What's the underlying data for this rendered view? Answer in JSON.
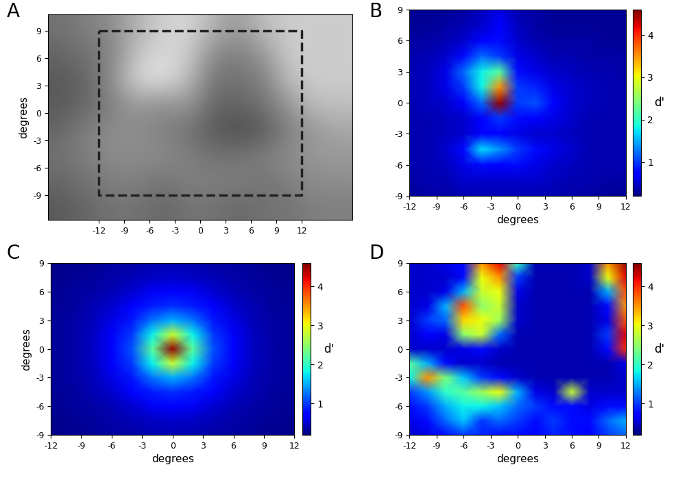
{
  "chart_data": [
    {
      "type": "image",
      "title": "A",
      "ylabel": "degrees",
      "color": "gray",
      "xlim": [
        -18,
        18
      ],
      "ylim": [
        -11.7,
        10.8
      ],
      "xticks": [
        -12,
        -9,
        -6,
        -3,
        0,
        3,
        6,
        9,
        12
      ],
      "yticks": [
        -9,
        -6,
        -3,
        0,
        3,
        6,
        9
      ],
      "clim": [
        0,
        1
      ],
      "cells": [
        [
          0.45,
          0.5,
          0.55,
          0.7,
          0.8,
          0.85,
          0.7,
          0.6,
          0.75,
          0.8,
          0.8,
          0.8
        ],
        [
          0.4,
          0.45,
          0.5,
          0.75,
          0.85,
          0.8,
          0.55,
          0.5,
          0.6,
          0.8,
          0.8,
          0.8
        ],
        [
          0.35,
          0.4,
          0.55,
          0.85,
          0.9,
          0.75,
          0.45,
          0.45,
          0.5,
          0.75,
          0.8,
          0.8
        ],
        [
          0.35,
          0.4,
          0.5,
          0.6,
          0.55,
          0.6,
          0.4,
          0.4,
          0.45,
          0.6,
          0.75,
          0.75
        ],
        [
          0.4,
          0.5,
          0.55,
          0.55,
          0.5,
          0.45,
          0.35,
          0.3,
          0.35,
          0.5,
          0.6,
          0.65
        ],
        [
          0.45,
          0.5,
          0.55,
          0.55,
          0.55,
          0.5,
          0.45,
          0.45,
          0.5,
          0.55,
          0.6,
          0.6
        ],
        [
          0.4,
          0.45,
          0.5,
          0.5,
          0.45,
          0.5,
          0.5,
          0.5,
          0.45,
          0.5,
          0.55,
          0.55
        ],
        [
          0.35,
          0.4,
          0.45,
          0.45,
          0.4,
          0.45,
          0.45,
          0.4,
          0.45,
          0.45,
          0.5,
          0.5
        ]
      ],
      "region": {
        "x": [
          -12,
          12
        ],
        "y": [
          -9,
          9
        ],
        "line_style": "dashed"
      }
    },
    {
      "type": "heatmap",
      "title": "B",
      "xlabel": "degrees",
      "color": "jet",
      "xlim": [
        -12,
        12
      ],
      "ylim": [
        -9,
        9
      ],
      "xticks": [
        -12,
        -9,
        -6,
        -3,
        0,
        3,
        6,
        9,
        12
      ],
      "yticks": [
        -9,
        -6,
        -3,
        0,
        3,
        6,
        9
      ],
      "x": [
        -12,
        -10,
        -8,
        -6,
        -4,
        -2,
        0,
        2,
        4,
        6,
        8,
        10,
        12
      ],
      "y": [
        9,
        7.5,
        6,
        4.5,
        3,
        1.5,
        0,
        -1.5,
        -3,
        -4.5,
        -6,
        -7.5,
        -9
      ],
      "cells": [
        [
          0.3,
          0.3,
          0.3,
          0.35,
          0.45,
          0.6,
          0.4,
          0.35,
          0.3,
          0.3,
          0.3,
          0.3,
          0.3
        ],
        [
          0.3,
          0.3,
          0.35,
          0.4,
          0.5,
          0.7,
          0.45,
          0.35,
          0.3,
          0.3,
          0.3,
          0.3,
          0.3
        ],
        [
          0.35,
          0.35,
          0.4,
          0.5,
          0.7,
          0.8,
          0.5,
          0.4,
          0.35,
          0.35,
          0.35,
          0.3,
          0.3
        ],
        [
          0.4,
          0.4,
          0.5,
          0.8,
          1.2,
          1.0,
          0.6,
          0.5,
          0.4,
          0.4,
          0.35,
          0.35,
          0.35
        ],
        [
          0.4,
          0.45,
          0.6,
          1.2,
          1.8,
          2.2,
          0.8,
          0.6,
          0.5,
          0.45,
          0.4,
          0.4,
          0.35
        ],
        [
          0.4,
          0.45,
          0.6,
          1.0,
          1.8,
          3.5,
          1.0,
          0.9,
          0.6,
          0.5,
          0.45,
          0.4,
          0.4
        ],
        [
          0.4,
          0.45,
          0.5,
          0.7,
          1.2,
          4.5,
          1.0,
          1.1,
          0.7,
          0.5,
          0.45,
          0.4,
          0.4
        ],
        [
          0.4,
          0.4,
          0.45,
          0.5,
          0.7,
          1.0,
          0.8,
          0.7,
          0.6,
          0.5,
          0.4,
          0.4,
          0.4
        ],
        [
          0.4,
          0.4,
          0.45,
          0.5,
          0.7,
          0.7,
          0.6,
          0.5,
          0.5,
          0.45,
          0.4,
          0.4,
          0.4
        ],
        [
          0.4,
          0.4,
          0.5,
          0.8,
          1.7,
          1.4,
          1.0,
          0.8,
          0.6,
          0.5,
          0.4,
          0.4,
          0.4
        ],
        [
          0.4,
          0.4,
          0.45,
          0.6,
          0.8,
          0.7,
          0.8,
          0.6,
          0.5,
          0.45,
          0.4,
          0.4,
          0.4
        ],
        [
          0.35,
          0.4,
          0.4,
          0.5,
          0.5,
          0.5,
          0.5,
          0.5,
          0.45,
          0.4,
          0.4,
          0.35,
          0.35
        ],
        [
          0.3,
          0.35,
          0.35,
          0.4,
          0.4,
          0.4,
          0.4,
          0.4,
          0.4,
          0.35,
          0.35,
          0.3,
          0.3
        ]
      ],
      "colorbar": {
        "label": "d'",
        "range": [
          0.2,
          4.6
        ],
        "ticks": [
          1,
          2,
          3,
          4
        ]
      }
    },
    {
      "type": "heatmap",
      "title": "C",
      "xlabel": "degrees",
      "ylabel": "degrees",
      "color": "jet",
      "xlim": [
        -12,
        12
      ],
      "ylim": [
        -9,
        9
      ],
      "xticks": [
        -12,
        -9,
        -6,
        -3,
        0,
        3,
        6,
        9,
        12
      ],
      "yticks": [
        -9,
        -6,
        -3,
        0,
        3,
        6,
        9
      ],
      "x": [
        -12,
        -10,
        -8,
        -6,
        -4,
        -2,
        0,
        2,
        4,
        6,
        8,
        10,
        12
      ],
      "y": [
        9,
        7.5,
        6,
        4.5,
        3,
        1.5,
        0,
        -1.5,
        -3,
        -4.5,
        -6,
        -7.5,
        -9
      ],
      "cells": [
        [
          0.25,
          0.28,
          0.3,
          0.33,
          0.35,
          0.4,
          0.4,
          0.4,
          0.35,
          0.33,
          0.3,
          0.28,
          0.25
        ],
        [
          0.26,
          0.29,
          0.32,
          0.37,
          0.42,
          0.47,
          0.5,
          0.47,
          0.42,
          0.37,
          0.32,
          0.29,
          0.26
        ],
        [
          0.28,
          0.31,
          0.35,
          0.42,
          0.52,
          0.65,
          0.7,
          0.65,
          0.52,
          0.42,
          0.35,
          0.31,
          0.28
        ],
        [
          0.29,
          0.32,
          0.4,
          0.5,
          0.7,
          0.87,
          0.95,
          0.87,
          0.7,
          0.5,
          0.4,
          0.32,
          0.29
        ],
        [
          0.3,
          0.34,
          0.42,
          0.6,
          0.85,
          1.25,
          1.5,
          1.25,
          0.85,
          0.6,
          0.42,
          0.34,
          0.3
        ],
        [
          0.3,
          0.35,
          0.45,
          0.67,
          1.0,
          1.8,
          2.8,
          1.8,
          1.0,
          0.67,
          0.45,
          0.35,
          0.3
        ],
        [
          0.3,
          0.35,
          0.45,
          0.7,
          1.1,
          2.2,
          4.5,
          2.2,
          1.1,
          0.7,
          0.45,
          0.35,
          0.3
        ],
        [
          0.3,
          0.35,
          0.45,
          0.67,
          1.0,
          1.8,
          2.8,
          1.8,
          1.0,
          0.67,
          0.45,
          0.35,
          0.3
        ],
        [
          0.3,
          0.34,
          0.42,
          0.6,
          0.85,
          1.25,
          1.5,
          1.25,
          0.85,
          0.6,
          0.42,
          0.34,
          0.3
        ],
        [
          0.29,
          0.32,
          0.4,
          0.5,
          0.7,
          0.87,
          0.95,
          0.87,
          0.7,
          0.5,
          0.4,
          0.32,
          0.29
        ],
        [
          0.28,
          0.31,
          0.35,
          0.42,
          0.52,
          0.65,
          0.7,
          0.65,
          0.52,
          0.42,
          0.35,
          0.31,
          0.28
        ],
        [
          0.26,
          0.29,
          0.32,
          0.37,
          0.42,
          0.47,
          0.5,
          0.47,
          0.42,
          0.37,
          0.32,
          0.29,
          0.26
        ],
        [
          0.25,
          0.28,
          0.3,
          0.33,
          0.35,
          0.4,
          0.4,
          0.4,
          0.35,
          0.33,
          0.3,
          0.28,
          0.25
        ]
      ],
      "colorbar": {
        "label": "d'",
        "range": [
          0.2,
          4.6
        ],
        "ticks": [
          1,
          2,
          3,
          4
        ]
      }
    },
    {
      "type": "heatmap",
      "title": "D",
      "xlabel": "degrees",
      "color": "jet",
      "xlim": [
        -12,
        12
      ],
      "ylim": [
        -9,
        9
      ],
      "xticks": [
        -12,
        -9,
        -6,
        -3,
        0,
        3,
        6,
        9,
        12
      ],
      "yticks": [
        -9,
        -6,
        -3,
        0,
        3,
        6,
        9
      ],
      "x": [
        -12,
        -10,
        -8,
        -6,
        -4,
        -2,
        0,
        2,
        4,
        6,
        8,
        10,
        12
      ],
      "y": [
        9,
        7.5,
        6,
        4.5,
        3,
        1.5,
        0,
        -1.5,
        -3,
        -4.5,
        -6,
        -7.5,
        -9
      ],
      "cells": [
        [
          0.5,
          0.5,
          0.6,
          0.8,
          3.5,
          4.2,
          2.0,
          0.4,
          0.4,
          0.4,
          0.5,
          3.5,
          4.5
        ],
        [
          0.5,
          0.5,
          0.5,
          0.8,
          3.0,
          3.5,
          1.0,
          0.4,
          0.4,
          0.4,
          0.5,
          3.0,
          4.2
        ],
        [
          0.5,
          0.5,
          0.6,
          1.5,
          2.8,
          3.0,
          0.6,
          0.4,
          0.4,
          0.4,
          0.4,
          1.5,
          3.8
        ],
        [
          0.5,
          0.6,
          1.5,
          3.8,
          2.5,
          2.8,
          0.5,
          0.4,
          0.4,
          0.4,
          0.4,
          0.8,
          3.5
        ],
        [
          0.5,
          1.0,
          1.2,
          3.2,
          3.0,
          2.6,
          0.5,
          0.4,
          0.4,
          0.4,
          0.4,
          0.6,
          3.8
        ],
        [
          0.5,
          0.7,
          0.6,
          2.5,
          2.8,
          1.2,
          0.4,
          0.4,
          0.4,
          0.4,
          0.4,
          1.0,
          4.2
        ],
        [
          0.5,
          0.5,
          0.5,
          0.6,
          0.8,
          0.5,
          0.4,
          0.4,
          0.4,
          0.4,
          0.4,
          0.8,
          4.0
        ],
        [
          2.2,
          1.5,
          0.8,
          0.5,
          0.5,
          0.4,
          0.4,
          0.4,
          0.4,
          0.4,
          0.4,
          0.4,
          0.6
        ],
        [
          1.8,
          3.5,
          2.4,
          1.6,
          1.0,
          0.8,
          0.5,
          0.4,
          0.4,
          0.4,
          0.4,
          0.4,
          0.5
        ],
        [
          1.0,
          1.4,
          2.0,
          2.2,
          2.6,
          3.0,
          1.5,
          0.6,
          0.5,
          2.8,
          0.5,
          0.5,
          0.5
        ],
        [
          0.8,
          1.0,
          1.5,
          1.8,
          1.8,
          1.6,
          1.2,
          1.0,
          0.8,
          0.8,
          0.6,
          0.8,
          0.8
        ],
        [
          0.6,
          0.8,
          1.2,
          1.6,
          1.0,
          1.2,
          1.0,
          0.8,
          1.0,
          0.8,
          0.8,
          1.2,
          1.5
        ],
        [
          0.5,
          0.6,
          0.8,
          1.0,
          0.9,
          0.8,
          0.8,
          0.7,
          0.9,
          0.8,
          0.7,
          1.0,
          1.2
        ]
      ],
      "colorbar": {
        "label": "d'",
        "range": [
          0.2,
          4.6
        ],
        "ticks": [
          1,
          2,
          3,
          4
        ]
      }
    }
  ]
}
